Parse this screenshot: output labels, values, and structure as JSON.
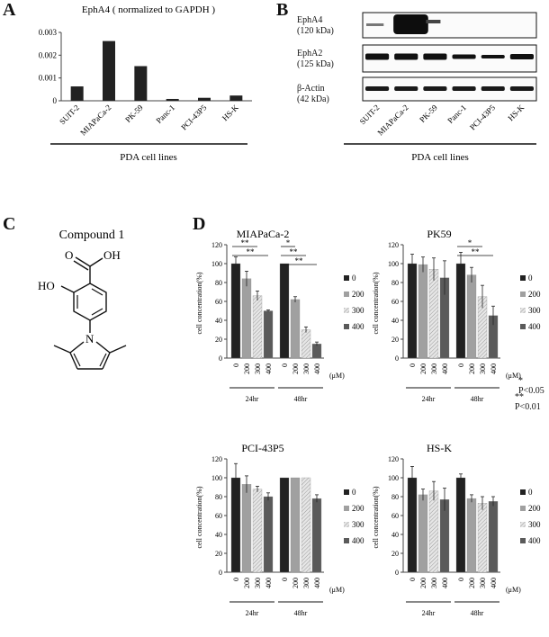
{
  "panels": {
    "a": "A",
    "b": "B",
    "c": "C",
    "d": "D"
  },
  "panel_a": {
    "chart_data": {
      "type": "bar",
      "title": "EphA4 ( normalized to GAPDH )",
      "categories": [
        "SUIT-2",
        "MIAPaCa-2",
        "PK-59",
        "Panc-1",
        "PCI-43P5",
        "HS-K"
      ],
      "values": [
        0.00063,
        0.00262,
        0.00152,
        8e-05,
        0.00013,
        0.00023
      ],
      "ylim": [
        0,
        0.003
      ],
      "yticks": [
        "0",
        "0.001",
        "0.002",
        "0.003"
      ],
      "xlabel": "PDA cell lines",
      "bar_color": "#222222"
    }
  },
  "panel_b": {
    "blots": [
      {
        "name": "EphA4",
        "size": "(120 kDa)"
      },
      {
        "name": "EphA2",
        "size": "(125 kDa)"
      },
      {
        "name": "β-Actin",
        "size": "(42 kDa)"
      }
    ],
    "lanes": [
      "SUIT-2",
      "MIAPaCa-2",
      "PK-59",
      "Panc-1",
      "PCI-43P5",
      "HS-K"
    ],
    "xlabel": "PDA cell lines"
  },
  "panel_c": {
    "title": "Compound 1",
    "atoms": {
      "o1": "O",
      "oh1": "OH",
      "ho": "HO",
      "n": "N"
    }
  },
  "panel_d": {
    "legend_labels": [
      "0",
      "200",
      "300",
      "400"
    ],
    "conc_ticks": [
      "0",
      "200",
      "300",
      "400"
    ],
    "unit": "(μM)",
    "time_groups": [
      "24hr",
      "48hr"
    ],
    "ylabel": "cell concentration(%)",
    "yticks": [
      "0",
      "20",
      "40",
      "60",
      "80",
      "100",
      "120"
    ],
    "pvalues": [
      "* P<0.05",
      "** P<0.01"
    ],
    "chart_data": [
      {
        "type": "bar",
        "title": "MIAPaCa-2",
        "series": [
          {
            "name": "24hr",
            "values": [
              100,
              84,
              66,
              50
            ],
            "errors": [
              7,
              8,
              5,
              1
            ]
          },
          {
            "name": "48hr",
            "values": [
              100,
              62,
              30,
              15
            ],
            "errors": [
              0,
              3,
              3,
              2
            ]
          }
        ],
        "ylim": [
          0,
          120
        ],
        "significance": [
          {
            "group": 0,
            "to": 2,
            "label": "**"
          },
          {
            "group": 0,
            "to": 3,
            "label": "**"
          },
          {
            "group": 1,
            "to": 1,
            "label": "*"
          },
          {
            "group": 1,
            "to": 2,
            "label": "**"
          },
          {
            "group": 1,
            "to": 3,
            "label": "**"
          }
        ]
      },
      {
        "type": "bar",
        "title": "PK59",
        "series": [
          {
            "name": "24hr",
            "values": [
              100,
              99,
              94,
              85
            ],
            "errors": [
              10,
              8,
              12,
              18
            ]
          },
          {
            "name": "48hr",
            "values": [
              100,
              88,
              65,
              45
            ],
            "errors": [
              12,
              8,
              12,
              10
            ]
          }
        ],
        "ylim": [
          0,
          120
        ],
        "significance": [
          {
            "group": 1,
            "to": 2,
            "label": "*"
          },
          {
            "group": 1,
            "to": 3,
            "label": "**"
          }
        ]
      },
      {
        "type": "bar",
        "title": "PCI-43P5",
        "series": [
          {
            "name": "24hr",
            "values": [
              100,
              93,
              88,
              80
            ],
            "errors": [
              15,
              9,
              3,
              4
            ]
          },
          {
            "name": "48hr",
            "values": [
              100,
              100,
              100,
              78
            ],
            "errors": [
              0,
              0,
              0,
              4
            ]
          }
        ],
        "ylim": [
          0,
          120
        ],
        "significance": []
      },
      {
        "type": "bar",
        "title": "HS-K",
        "series": [
          {
            "name": "24hr",
            "values": [
              100,
              82,
              86,
              77
            ],
            "errors": [
              12,
              6,
              10,
              12
            ]
          },
          {
            "name": "48hr",
            "values": [
              100,
              78,
              73,
              75
            ],
            "errors": [
              4,
              4,
              7,
              5
            ]
          }
        ],
        "ylim": [
          0,
          120
        ],
        "significance": []
      }
    ],
    "colors": [
      "#222222",
      "#a0a0a0",
      "hatch",
      "#5a5a5a"
    ]
  }
}
